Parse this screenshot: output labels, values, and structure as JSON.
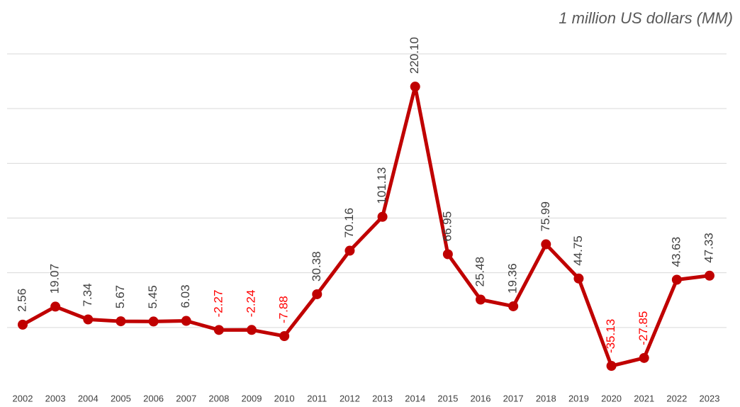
{
  "chart_data": {
    "type": "line",
    "subtitle": "1 million US dollars (MM)",
    "categories": [
      "2002",
      "2003",
      "2004",
      "2005",
      "2006",
      "2007",
      "2008",
      "2009",
      "2010",
      "2011",
      "2012",
      "2013",
      "2014",
      "2015",
      "2016",
      "2017",
      "2018",
      "2019",
      "2020",
      "2021",
      "2022",
      "2023"
    ],
    "series": [
      {
        "color": "#c00000",
        "values": [
          2.56,
          19.07,
          7.34,
          5.67,
          5.45,
          6.03,
          -2.27,
          -2.24,
          -7.88,
          30.38,
          70.16,
          101.13,
          220.1,
          66.95,
          25.48,
          19.36,
          75.99,
          44.75,
          -35.13,
          -27.85,
          43.63,
          47.33
        ],
        "value_labels": [
          "2.56",
          "19.07",
          "7.34",
          "5.67",
          "5.45",
          "6.03",
          "-2.27",
          "-2.24",
          "-7.88",
          "30.38",
          "70.16",
          "101.13",
          "220.10",
          "66.95",
          "25.48",
          "19.36",
          "75.99",
          "44.75",
          "-35.13",
          "-27.85",
          "43.63",
          "47.33"
        ]
      }
    ],
    "positive_label_color": "#404040",
    "negative_label_color": "#ff0000",
    "ylim": [
      -50,
      250
    ],
    "yticks": [
      0,
      50,
      100,
      150,
      200,
      250
    ],
    "show_ytick_labels": false,
    "grid": true
  }
}
